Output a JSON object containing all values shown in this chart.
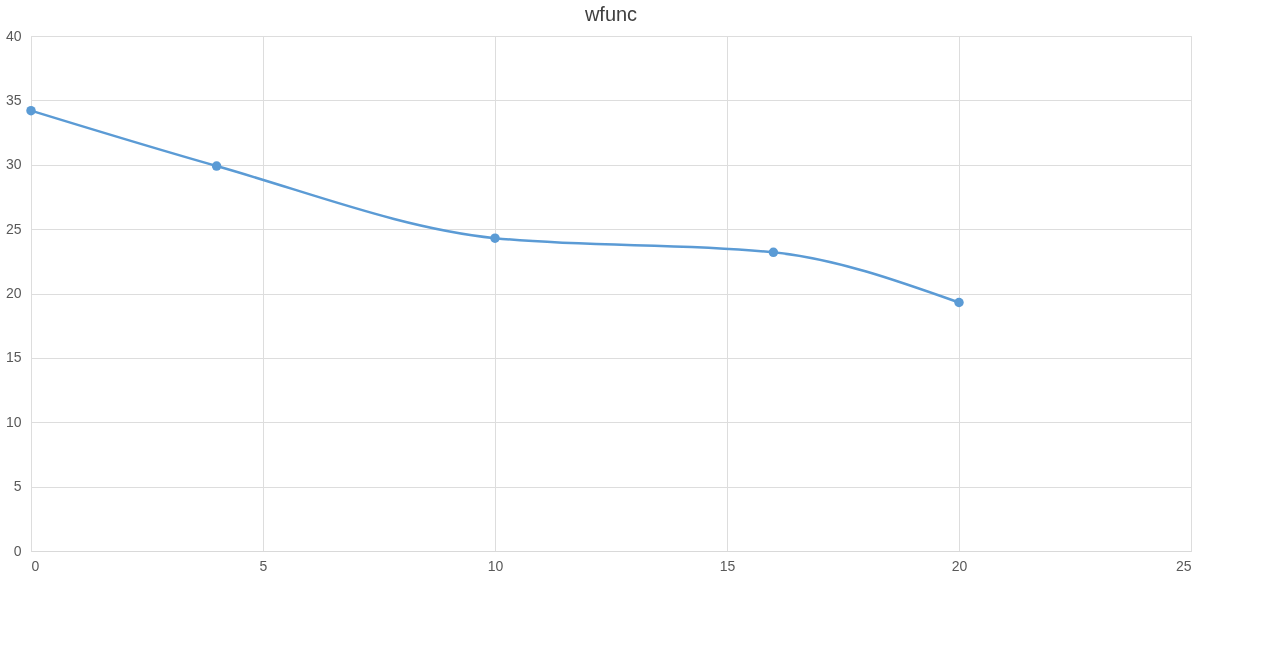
{
  "chart_data": {
    "type": "line",
    "title": "wfunc",
    "x": [
      0,
      4,
      10,
      16,
      20
    ],
    "series": [
      {
        "color": "#5b9bd5",
        "values": [
          34.2,
          29.9,
          24.3,
          23.2,
          19.3
        ]
      }
    ],
    "xlim": [
      0,
      25
    ],
    "xticks": [
      0,
      5,
      10,
      15,
      20,
      25
    ],
    "ylim": [
      0,
      40
    ],
    "yticks": [
      0,
      5,
      10,
      15,
      20,
      25,
      30,
      35,
      40
    ],
    "grid": true,
    "marker": "circle",
    "line_style": "solid"
  }
}
